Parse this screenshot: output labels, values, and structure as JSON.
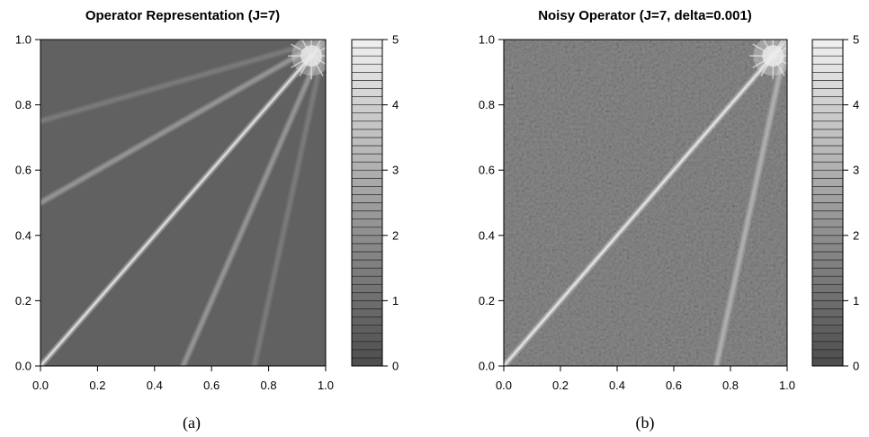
{
  "chart_data": [
    {
      "type": "heatmap",
      "title": "Operator Representation (J=7)",
      "caption": "(a)",
      "xlim": [
        0,
        1
      ],
      "ylim": [
        0,
        1
      ],
      "xticks": [
        "0.0",
        "0.2",
        "0.4",
        "0.6",
        "0.8",
        "1.0"
      ],
      "yticks": [
        "0.0",
        "0.2",
        "0.4",
        "0.6",
        "0.8",
        "1.0"
      ],
      "colorbar": {
        "range": [
          0,
          5
        ],
        "ticks": [
          "0",
          "1",
          "2",
          "3",
          "4",
          "5"
        ],
        "levels": 40,
        "colors": [
          "#4d4d4d",
          "#f0f0f0"
        ]
      },
      "background_level": 0.6,
      "noise": 0,
      "features": [
        {
          "kind": "diagonal",
          "from": [
            0,
            0
          ],
          "to": [
            1,
            1
          ],
          "level": 4.4
        },
        {
          "kind": "band",
          "from": [
            0.0,
            0.5
          ],
          "to": [
            1,
            1
          ],
          "level": 2.2
        },
        {
          "kind": "band",
          "from": [
            0.5,
            0.0
          ],
          "to": [
            1,
            1
          ],
          "level": 2.2
        },
        {
          "kind": "band",
          "from": [
            0.0,
            0.75
          ],
          "to": [
            1,
            1
          ],
          "level": 1.4
        },
        {
          "kind": "band",
          "from": [
            0.75,
            0.0
          ],
          "to": [
            1,
            1
          ],
          "level": 1.4
        },
        {
          "kind": "corner",
          "at": [
            0.95,
            0.95
          ],
          "level": 4.8
        }
      ]
    },
    {
      "type": "heatmap",
      "title": "Noisy Operator (J=7, delta=0.001)",
      "caption": "(b)",
      "xlim": [
        0,
        1
      ],
      "ylim": [
        0,
        1
      ],
      "xticks": [
        "0.0",
        "0.2",
        "0.4",
        "0.6",
        "0.8",
        "1.0"
      ],
      "yticks": [
        "0.0",
        "0.2",
        "0.4",
        "0.6",
        "0.8",
        "1.0"
      ],
      "colorbar": {
        "range": [
          0,
          5
        ],
        "ticks": [
          "0",
          "1",
          "2",
          "3",
          "4",
          "5"
        ],
        "levels": 40,
        "colors": [
          "#4d4d4d",
          "#f0f0f0"
        ]
      },
      "background_level": 1.9,
      "noise": 0.7,
      "features": [
        {
          "kind": "diagonal",
          "from": [
            0,
            0
          ],
          "to": [
            1,
            1
          ],
          "level": 4.6
        },
        {
          "kind": "band",
          "from": [
            0.75,
            0.0
          ],
          "to": [
            1,
            1
          ],
          "level": 3.0
        },
        {
          "kind": "corner",
          "at": [
            0.95,
            0.95
          ],
          "level": 4.9
        }
      ]
    }
  ]
}
